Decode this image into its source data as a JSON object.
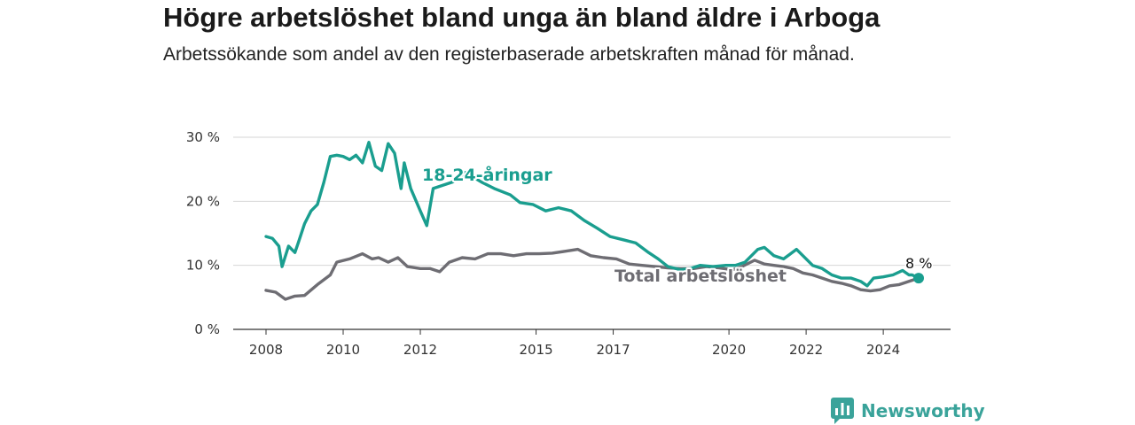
{
  "title": "Högre arbetslöshet bland unga än bland äldre i Arboga",
  "subtitle": "Arbetssökande som andel av den registerbaserade arbetskraften månad för månad.",
  "brand": {
    "name": "Newsworthy",
    "icon": "bar-chart-logo-icon",
    "color": "#3aa39a"
  },
  "chart_data": {
    "type": "line",
    "title": "Högre arbetslöshet bland unga än bland äldre i Arboga",
    "subtitle": "Arbetssökande som andel av den registerbaserade arbetskraften månad för månad.",
    "xlabel": "",
    "ylabel": "",
    "x_ticks": [
      "2008",
      "2010",
      "2012",
      "2015",
      "2017",
      "2020",
      "2022",
      "2024"
    ],
    "x_range": [
      "2008-01",
      "2024-12"
    ],
    "y_ticks": [
      "0 %",
      "10 %",
      "20 %",
      "30 %"
    ],
    "ylim": [
      0,
      30
    ],
    "grid": true,
    "end_label": "8 %",
    "series": [
      {
        "name": "18-24-åringar",
        "color": "#1a9e8f",
        "points": [
          [
            "2008-01",
            14.5
          ],
          [
            "2008-03",
            14.2
          ],
          [
            "2008-05",
            13.0
          ],
          [
            "2008-06",
            9.8
          ],
          [
            "2008-08",
            13.0
          ],
          [
            "2008-10",
            12.0
          ],
          [
            "2008-11",
            13.5
          ],
          [
            "2009-01",
            16.5
          ],
          [
            "2009-03",
            18.5
          ],
          [
            "2009-05",
            19.5
          ],
          [
            "2009-07",
            23.0
          ],
          [
            "2009-09",
            27.0
          ],
          [
            "2009-11",
            27.2
          ],
          [
            "2010-01",
            27.0
          ],
          [
            "2010-03",
            26.5
          ],
          [
            "2010-05",
            27.2
          ],
          [
            "2010-07",
            26.0
          ],
          [
            "2010-09",
            29.2
          ],
          [
            "2010-11",
            25.5
          ],
          [
            "2011-01",
            24.8
          ],
          [
            "2011-03",
            29.0
          ],
          [
            "2011-05",
            27.5
          ],
          [
            "2011-07",
            22.0
          ],
          [
            "2011-08",
            26.0
          ],
          [
            "2011-10",
            22.0
          ],
          [
            "2012-01",
            18.5
          ],
          [
            "2012-03",
            16.2
          ],
          [
            "2012-05",
            22.0
          ],
          [
            "2012-08",
            22.5
          ],
          [
            "2012-11",
            23.0
          ],
          [
            "2013-03",
            24.5
          ],
          [
            "2013-08",
            23.0
          ],
          [
            "2013-12",
            22.0
          ],
          [
            "2014-05",
            21.0
          ],
          [
            "2014-08",
            19.8
          ],
          [
            "2014-12",
            19.5
          ],
          [
            "2015-04",
            18.5
          ],
          [
            "2015-08",
            19.0
          ],
          [
            "2015-12",
            18.5
          ],
          [
            "2016-04",
            17.0
          ],
          [
            "2016-08",
            15.8
          ],
          [
            "2016-12",
            14.5
          ],
          [
            "2017-04",
            14.0
          ],
          [
            "2017-08",
            13.5
          ],
          [
            "2017-12",
            12.0
          ],
          [
            "2018-03",
            11.0
          ],
          [
            "2018-06",
            9.8
          ],
          [
            "2018-10",
            9.3
          ],
          [
            "2019-01",
            9.5
          ],
          [
            "2019-04",
            10.0
          ],
          [
            "2019-08",
            9.8
          ],
          [
            "2019-12",
            10.0
          ],
          [
            "2020-03",
            10.0
          ],
          [
            "2020-06",
            10.5
          ],
          [
            "2020-10",
            12.5
          ],
          [
            "2020-12",
            12.8
          ],
          [
            "2021-03",
            11.5
          ],
          [
            "2021-06",
            11.0
          ],
          [
            "2021-10",
            12.5
          ],
          [
            "2021-12",
            11.5
          ],
          [
            "2022-03",
            10.0
          ],
          [
            "2022-06",
            9.5
          ],
          [
            "2022-09",
            8.5
          ],
          [
            "2022-12",
            8.0
          ],
          [
            "2023-03",
            8.0
          ],
          [
            "2023-06",
            7.5
          ],
          [
            "2023-08",
            6.8
          ],
          [
            "2023-10",
            8.0
          ],
          [
            "2024-01",
            8.2
          ],
          [
            "2024-04",
            8.5
          ],
          [
            "2024-07",
            9.2
          ],
          [
            "2024-09",
            8.5
          ],
          [
            "2024-10",
            8.5
          ],
          [
            "2024-12",
            8.0
          ]
        ]
      },
      {
        "name": "Total arbetslöshet",
        "color": "#6e6d73",
        "points": [
          [
            "2008-01",
            6.1
          ],
          [
            "2008-04",
            5.8
          ],
          [
            "2008-07",
            4.7
          ],
          [
            "2008-10",
            5.2
          ],
          [
            "2009-01",
            5.3
          ],
          [
            "2009-05",
            7.0
          ],
          [
            "2009-09",
            8.5
          ],
          [
            "2009-11",
            10.5
          ],
          [
            "2010-03",
            11.0
          ],
          [
            "2010-07",
            11.8
          ],
          [
            "2010-10",
            11.0
          ],
          [
            "2010-12",
            11.2
          ],
          [
            "2011-03",
            10.5
          ],
          [
            "2011-06",
            11.2
          ],
          [
            "2011-09",
            9.8
          ],
          [
            "2012-01",
            9.5
          ],
          [
            "2012-04",
            9.5
          ],
          [
            "2012-07",
            9.0
          ],
          [
            "2012-10",
            10.5
          ],
          [
            "2013-02",
            11.2
          ],
          [
            "2013-06",
            11.0
          ],
          [
            "2013-10",
            11.8
          ],
          [
            "2014-02",
            11.8
          ],
          [
            "2014-06",
            11.5
          ],
          [
            "2014-10",
            11.8
          ],
          [
            "2015-02",
            11.8
          ],
          [
            "2015-06",
            11.9
          ],
          [
            "2015-10",
            12.2
          ],
          [
            "2016-02",
            12.5
          ],
          [
            "2016-06",
            11.5
          ],
          [
            "2016-10",
            11.2
          ],
          [
            "2017-02",
            11.0
          ],
          [
            "2017-06",
            10.2
          ],
          [
            "2017-10",
            10.0
          ],
          [
            "2018-02",
            9.8
          ],
          [
            "2018-06",
            9.6
          ],
          [
            "2018-10",
            9.5
          ],
          [
            "2019-02",
            9.5
          ],
          [
            "2019-06",
            9.8
          ],
          [
            "2019-10",
            9.6
          ],
          [
            "2020-02",
            9.3
          ],
          [
            "2020-05",
            9.8
          ],
          [
            "2020-09",
            10.8
          ],
          [
            "2020-12",
            10.2
          ],
          [
            "2021-03",
            10.0
          ],
          [
            "2021-06",
            9.8
          ],
          [
            "2021-09",
            9.5
          ],
          [
            "2021-12",
            8.8
          ],
          [
            "2022-03",
            8.5
          ],
          [
            "2022-06",
            8.0
          ],
          [
            "2022-09",
            7.5
          ],
          [
            "2022-12",
            7.2
          ],
          [
            "2023-03",
            6.8
          ],
          [
            "2023-06",
            6.2
          ],
          [
            "2023-09",
            6.0
          ],
          [
            "2023-12",
            6.2
          ],
          [
            "2024-03",
            6.8
          ],
          [
            "2024-06",
            7.0
          ],
          [
            "2024-09",
            7.5
          ],
          [
            "2024-12",
            8.0
          ]
        ]
      }
    ]
  }
}
